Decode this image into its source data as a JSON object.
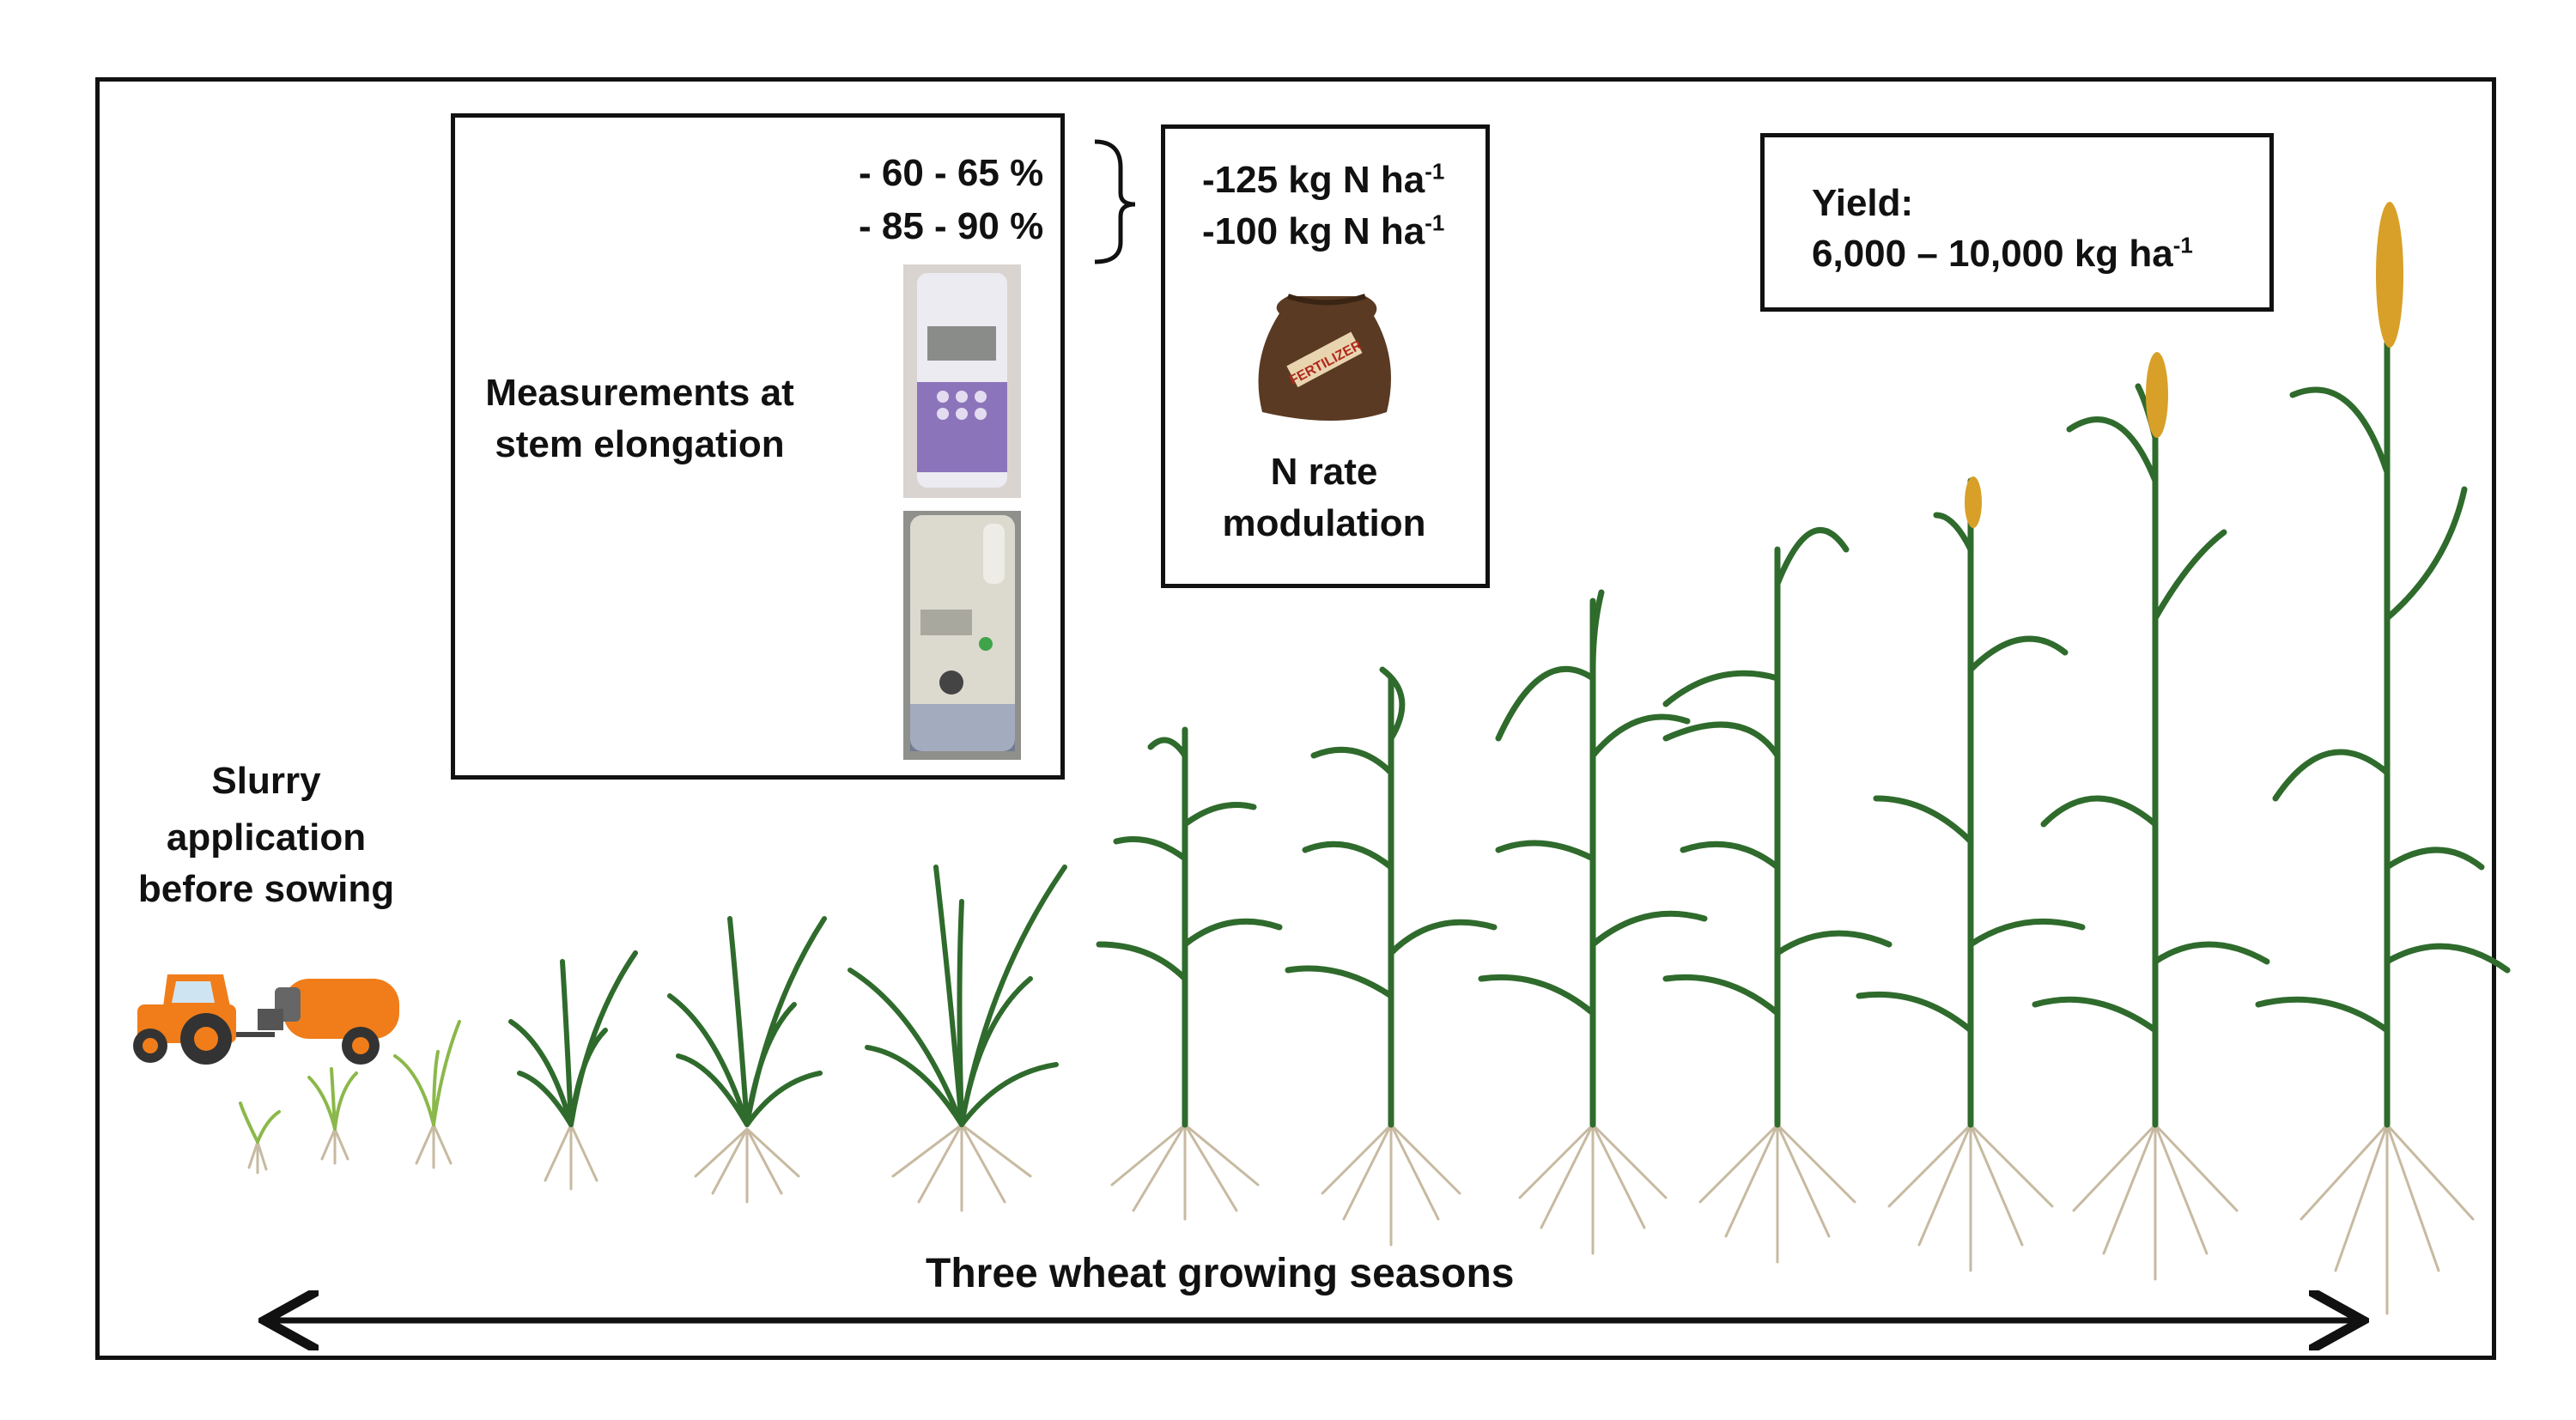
{
  "slurry": {
    "line1": "Slurry",
    "line2": "application",
    "line3": "before sowing"
  },
  "measurement": {
    "label_line1": "Measurements at",
    "label_line2": "stem elongation",
    "range1": "- 60 - 65 %",
    "range2": "- 85 - 90 %",
    "device1_icon": "chlorophyll-meter-purple",
    "device2_icon": "chlorophyll-meter-grey"
  },
  "n_rate": {
    "rate1_prefix": "-125 kg N ha",
    "rate2_prefix": "-100 kg N ha",
    "exponent": "-1",
    "bag_label": "FERTILIZER",
    "label_line1": "N rate",
    "label_line2": "modulation"
  },
  "yield": {
    "label": "Yield:",
    "value_prefix": "6,000 – 10,000 kg ha",
    "exponent": "-1"
  },
  "timeline": {
    "label": "Three wheat growing seasons"
  },
  "colors": {
    "tractor": "#f07d1a",
    "leaf": "#2f6b2c",
    "leaf_light": "#8bb84a",
    "root": "#b9a98a",
    "grain": "#d8a028"
  }
}
